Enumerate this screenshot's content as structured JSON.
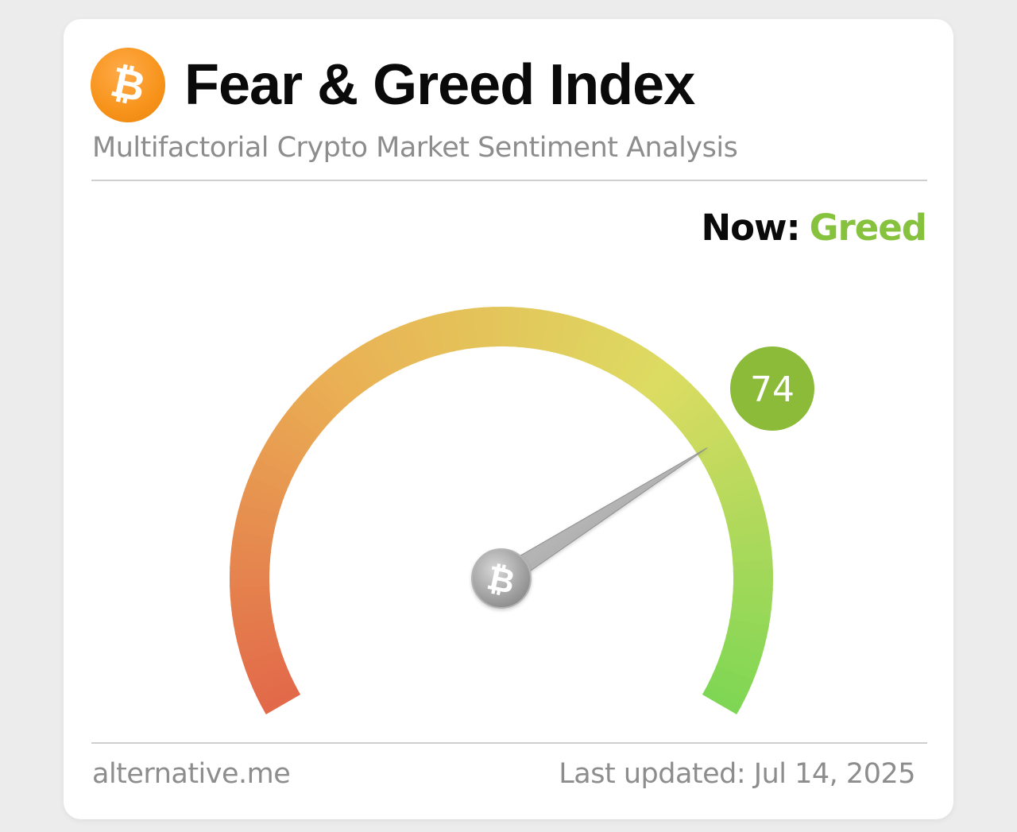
{
  "header": {
    "logo_symbol": "₿",
    "logo_icon": "bitcoin-icon",
    "title": "Fear & Greed Index",
    "subtitle": "Multifactorial Crypto Market Sentiment Analysis"
  },
  "status": {
    "now_label": "Now:",
    "classification": "Greed",
    "classification_color": "#86c23e"
  },
  "gauge": {
    "value": 74,
    "value_text": "74",
    "min": 0,
    "max": 100,
    "badge_color": "#8bbb38",
    "gradient_colors": [
      "#e2694a",
      "#eab054",
      "#dcdc62",
      "#7fd654"
    ],
    "hub_symbol": "₿",
    "hub_icon": "bitcoin-icon"
  },
  "footer": {
    "source": "alternative.me",
    "last_updated": "Last updated: Jul 14, 2025"
  }
}
